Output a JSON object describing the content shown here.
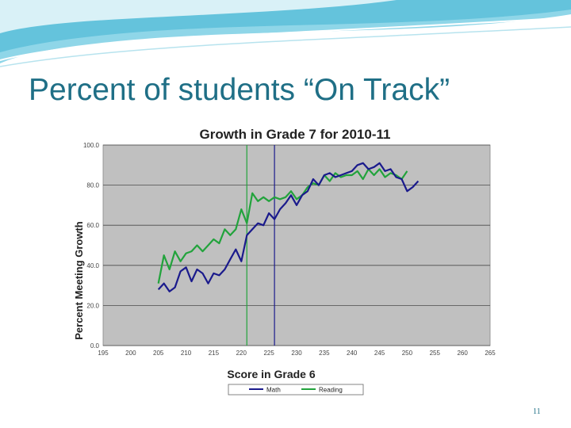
{
  "slide": {
    "title": "Percent of students “On Track”",
    "page_number": "11"
  },
  "colors": {
    "accent": "#1f6f86",
    "plot_bg": "#c0c0c0",
    "math": "#1a1a8c",
    "reading": "#22a33c"
  },
  "chart_data": {
    "type": "line",
    "title": "Growth in Grade 7 for 2010-11",
    "xlabel": "Score in Grade 6",
    "ylabel": "Percent Meeting Growth",
    "xlim": [
      195,
      265
    ],
    "ylim": [
      0,
      100
    ],
    "x_ticks": [
      "195",
      "200",
      "205",
      "210",
      "215",
      "220",
      "225",
      "230",
      "235",
      "240",
      "245",
      "250",
      "255",
      "260",
      "265"
    ],
    "y_ticks": [
      "0.0",
      "20.0",
      "40.0",
      "60.0",
      "80.0",
      "100.0"
    ],
    "grid": true,
    "legend": "bottom",
    "reference_lines": [
      {
        "x": 221,
        "series": "Reading"
      },
      {
        "x": 226,
        "series": "Math"
      }
    ],
    "series": [
      {
        "name": "Math",
        "x": [
          205,
          206,
          207,
          208,
          209,
          210,
          211,
          212,
          213,
          214,
          215,
          216,
          217,
          218,
          219,
          220,
          221,
          222,
          223,
          224,
          225,
          226,
          227,
          228,
          229,
          230,
          231,
          232,
          233,
          234,
          235,
          236,
          237,
          238,
          239,
          240,
          241,
          242,
          243,
          244,
          245,
          246,
          247,
          248,
          249,
          250,
          251,
          252
        ],
        "y": [
          28,
          31,
          27,
          29,
          37,
          39,
          32,
          38,
          36,
          31,
          36,
          35,
          38,
          43,
          48,
          42,
          55,
          58,
          61,
          60,
          66,
          63,
          68,
          71,
          75,
          70,
          75,
          77,
          83,
          80,
          85,
          86,
          84,
          85,
          86,
          87,
          90,
          91,
          88,
          89,
          91,
          87,
          88,
          84,
          83,
          77,
          79,
          82
        ]
      },
      {
        "name": "Reading",
        "x": [
          205,
          206,
          207,
          208,
          209,
          210,
          211,
          212,
          213,
          214,
          215,
          216,
          217,
          218,
          219,
          220,
          221,
          222,
          223,
          224,
          225,
          226,
          227,
          228,
          229,
          230,
          231,
          232,
          233,
          234,
          235,
          236,
          237,
          238,
          239,
          240,
          241,
          242,
          243,
          244,
          245,
          246,
          247,
          248,
          249,
          250
        ],
        "y": [
          31,
          45,
          38,
          47,
          42,
          46,
          47,
          50,
          47,
          50,
          53,
          51,
          58,
          55,
          58,
          68,
          61,
          76,
          72,
          74,
          72,
          74,
          73,
          74,
          77,
          73,
          75,
          79,
          81,
          80,
          85,
          82,
          86,
          84,
          85,
          85,
          87,
          83,
          88,
          85,
          88,
          84,
          86,
          85,
          83,
          87
        ]
      }
    ]
  }
}
